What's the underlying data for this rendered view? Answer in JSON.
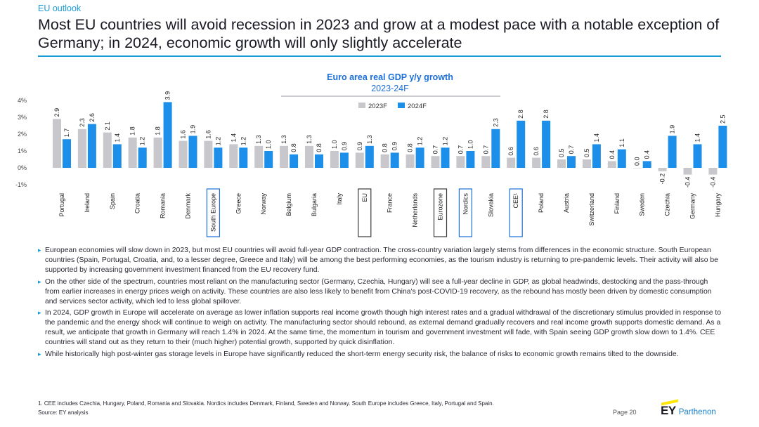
{
  "header": {
    "section": "EU outlook",
    "title": "Most EU countries will avoid recession in 2023 and grow at a modest pace with a notable exception of Germany; in 2024, economic growth will only slightly accelerate"
  },
  "colors": {
    "accent": "#1a9ad6",
    "bar2023": "#c8c8cc",
    "bar2024": "#1c8fea",
    "highlight_blue": "#1c6fd8",
    "highlight_dark": "#3a3a3a"
  },
  "chart_data": {
    "type": "bar",
    "title": "Euro area real GDP y/y growth",
    "subtitle": "2023-24F",
    "xlabel": "",
    "ylabel": "",
    "ylim": [
      -1,
      4
    ],
    "yticks": [
      "-1%",
      "0%",
      "1%",
      "2%",
      "3%",
      "4%"
    ],
    "legend_position": "top-center",
    "categories": [
      "Portugal",
      "Ireland",
      "Spain",
      "Croatia",
      "Romania",
      "Denmark",
      "South Europe",
      "Greece",
      "Norway",
      "Belgium",
      "Bulgaria",
      "Italy",
      "EU",
      "France",
      "Netherlands",
      "Eurozone",
      "Nordics",
      "Slovakia",
      "CEE¹",
      "Poland",
      "Austria",
      "Switzerland",
      "Finland",
      "Sweden",
      "Czechia",
      "Germany",
      "Hungary"
    ],
    "highlighted": [
      {
        "category": "South Europe",
        "style": "blue"
      },
      {
        "category": "EU",
        "style": "dark"
      },
      {
        "category": "Eurozone",
        "style": "dark"
      },
      {
        "category": "Nordics",
        "style": "blue"
      },
      {
        "category": "CEE¹",
        "style": "blue"
      }
    ],
    "series": [
      {
        "name": "2023F",
        "values": [
          2.9,
          2.3,
          2.1,
          1.8,
          1.8,
          1.6,
          1.6,
          1.4,
          1.3,
          1.3,
          1.3,
          1.0,
          0.9,
          0.8,
          0.8,
          0.7,
          0.7,
          0.7,
          0.6,
          0.6,
          0.5,
          0.5,
          0.4,
          0.0,
          -0.2,
          -0.4,
          -0.4
        ]
      },
      {
        "name": "2024F",
        "values": [
          1.7,
          2.6,
          1.4,
          1.2,
          3.9,
          1.9,
          1.2,
          1.2,
          1.0,
          0.8,
          0.8,
          0.9,
          1.3,
          0.9,
          1.2,
          1.2,
          1.0,
          2.3,
          2.8,
          2.8,
          0.7,
          1.4,
          1.1,
          0.4,
          1.9,
          1.4,
          2.5
        ]
      }
    ]
  },
  "bullets": [
    "European economies will slow down in 2023, but most EU countries will avoid full-year GDP contraction. The cross-country variation largely stems from differences in the economic structure. South European countries (Spain, Portugal, Croatia, and, to a lesser degree, Greece and Italy) will be among the best performing economies, as the tourism industry is returning to pre-pandemic levels. Their activity will also be supported by increasing government investment financed from the EU recovery fund.",
    "On the other side of the spectrum, countries most reliant on the manufacturing sector (Germany, Czechia, Hungary) will see a full-year decline in GDP, as global headwinds, destocking and the pass-through from earlier increases in energy prices weigh on activity. These countries are also less likely to benefit from China's post-COVID-19 recovery, as the rebound has mostly been driven by domestic consumption and services sector activity, which led to less global spillover.",
    "In 2024, GDP growth in Europe will accelerate on average as lower inflation supports real income growth though high interest rates and a gradual withdrawal of the discretionary stimulus provided in response to the pandemic and the energy shock will continue to weigh on activity. The manufacturing sector should rebound, as external demand gradually recovers and real income growth supports domestic demand. As a result, we anticipate that growth in Germany will reach 1.4% in 2024. At the same time, the momentum in tourism and government investment will fade, with Spain seeing GDP growth slow down to 1.4%. CEE countries will stand out as they return to their (much higher) potential growth, supported by quick disinflation.",
    "While historically high post-winter gas storage levels in Europe have significantly reduced the short-term energy security risk, the balance of risks to economic growth remains tilted to the downside."
  ],
  "footer": {
    "footnote": "1.    CEE includes Czechia, Hungary, Poland, Romania and Slovakia. Nordics includes Denmark, Finland, Sweden and Norway. South Europe includes Greece, Italy, Portugal and Spain.",
    "source": "Source: EY analysis",
    "page": "Page 20",
    "logo_mark": "EY",
    "logo_name": "Parthenon"
  }
}
